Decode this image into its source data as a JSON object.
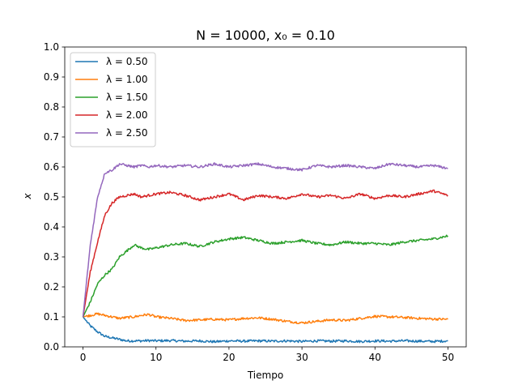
{
  "chart_data": {
    "type": "line",
    "title": "N = 10000, x₀ = 0.10",
    "xlabel": "Tiempo",
    "ylabel": "x",
    "xlim": [
      -2.5,
      52.5
    ],
    "ylim": [
      0.0,
      1.0
    ],
    "xticks": [
      0,
      10,
      20,
      30,
      40,
      50
    ],
    "yticks": [
      0.0,
      0.1,
      0.2,
      0.3,
      0.4,
      0.5,
      0.6,
      0.7,
      0.8,
      0.9,
      1.0
    ],
    "grid": false,
    "legend_position": "upper-left",
    "series": [
      {
        "name": "λ = 0.50",
        "color": "#1f77b4",
        "x": [
          0,
          1,
          2,
          3,
          4,
          5,
          6,
          7,
          8,
          9,
          10,
          12,
          14,
          16,
          18,
          20,
          22,
          24,
          26,
          28,
          30,
          32,
          34,
          36,
          38,
          40,
          42,
          44,
          46,
          48,
          50
        ],
        "y": [
          0.1,
          0.07,
          0.05,
          0.035,
          0.03,
          0.025,
          0.02,
          0.02,
          0.02,
          0.021,
          0.02,
          0.021,
          0.019,
          0.02,
          0.017,
          0.02,
          0.019,
          0.02,
          0.019,
          0.02,
          0.018,
          0.02,
          0.019,
          0.02,
          0.018,
          0.02,
          0.019,
          0.02,
          0.019,
          0.018,
          0.02
        ]
      },
      {
        "name": "λ = 1.00",
        "color": "#ff7f0e",
        "x": [
          0,
          1,
          2,
          3,
          4,
          5,
          6,
          7,
          8,
          9,
          10,
          12,
          14,
          16,
          18,
          20,
          22,
          24,
          26,
          28,
          30,
          32,
          34,
          36,
          38,
          40,
          42,
          44,
          46,
          48,
          50
        ],
        "y": [
          0.1,
          0.105,
          0.11,
          0.105,
          0.1,
          0.095,
          0.098,
          0.1,
          0.105,
          0.108,
          0.1,
          0.095,
          0.088,
          0.09,
          0.092,
          0.09,
          0.095,
          0.097,
          0.092,
          0.085,
          0.08,
          0.085,
          0.09,
          0.088,
          0.095,
          0.102,
          0.1,
          0.098,
          0.095,
          0.093,
          0.092
        ]
      },
      {
        "name": "λ = 1.50",
        "color": "#2ca02c",
        "x": [
          0,
          1,
          2,
          3,
          4,
          5,
          6,
          7,
          8,
          9,
          10,
          12,
          14,
          16,
          18,
          20,
          22,
          24,
          26,
          28,
          30,
          32,
          34,
          36,
          38,
          40,
          42,
          44,
          46,
          48,
          50
        ],
        "y": [
          0.1,
          0.15,
          0.21,
          0.24,
          0.26,
          0.3,
          0.32,
          0.34,
          0.33,
          0.325,
          0.33,
          0.34,
          0.345,
          0.335,
          0.35,
          0.36,
          0.365,
          0.355,
          0.345,
          0.35,
          0.355,
          0.345,
          0.34,
          0.35,
          0.345,
          0.345,
          0.34,
          0.35,
          0.355,
          0.36,
          0.37
        ]
      },
      {
        "name": "λ = 2.00",
        "color": "#d62728",
        "x": [
          0,
          1,
          2,
          3,
          4,
          5,
          6,
          7,
          8,
          9,
          10,
          12,
          14,
          16,
          18,
          20,
          22,
          24,
          26,
          28,
          30,
          32,
          34,
          36,
          38,
          40,
          42,
          44,
          46,
          48,
          50
        ],
        "y": [
          0.1,
          0.25,
          0.35,
          0.44,
          0.48,
          0.5,
          0.505,
          0.51,
          0.5,
          0.505,
          0.51,
          0.515,
          0.505,
          0.49,
          0.5,
          0.51,
          0.49,
          0.505,
          0.5,
          0.495,
          0.51,
          0.5,
          0.505,
          0.495,
          0.51,
          0.495,
          0.505,
          0.5,
          0.51,
          0.52,
          0.505
        ]
      },
      {
        "name": "λ = 2.50",
        "color": "#9467bd",
        "x": [
          0,
          1,
          2,
          3,
          4,
          5,
          6,
          7,
          8,
          9,
          10,
          12,
          14,
          16,
          18,
          20,
          22,
          24,
          26,
          28,
          30,
          32,
          34,
          36,
          38,
          40,
          42,
          44,
          46,
          48,
          50
        ],
        "y": [
          0.1,
          0.34,
          0.5,
          0.58,
          0.59,
          0.61,
          0.605,
          0.6,
          0.605,
          0.6,
          0.605,
          0.6,
          0.605,
          0.6,
          0.61,
          0.6,
          0.605,
          0.61,
          0.6,
          0.595,
          0.59,
          0.605,
          0.6,
          0.605,
          0.6,
          0.595,
          0.61,
          0.605,
          0.6,
          0.605,
          0.595
        ]
      }
    ]
  }
}
